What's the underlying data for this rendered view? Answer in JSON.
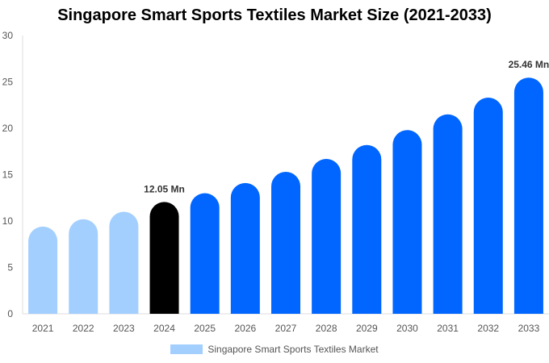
{
  "chart_data": {
    "type": "bar",
    "title": "Singapore Smart Sports Textiles Market Size (2021-2033)",
    "categories": [
      "2021",
      "2022",
      "2023",
      "2024",
      "2025",
      "2026",
      "2027",
      "2028",
      "2029",
      "2030",
      "2031",
      "2032",
      "2033"
    ],
    "series": [
      {
        "name": "Singapore Smart Sports Textiles Market",
        "values": [
          9.4,
          10.2,
          11.0,
          12.05,
          13.0,
          14.1,
          15.3,
          16.7,
          18.2,
          19.8,
          21.5,
          23.3,
          25.46
        ]
      }
    ],
    "data_labels": {
      "3": "12.05 Mn",
      "12": "25.46 Mn"
    },
    "ylim": [
      0,
      30
    ],
    "yticks": [
      0,
      5,
      10,
      15,
      20,
      25,
      30
    ],
    "grid": false,
    "legend_position": "bottom",
    "colors": {
      "historical": "#a3cfff",
      "base_year": "#000000",
      "forecast": "#0066ff"
    }
  }
}
